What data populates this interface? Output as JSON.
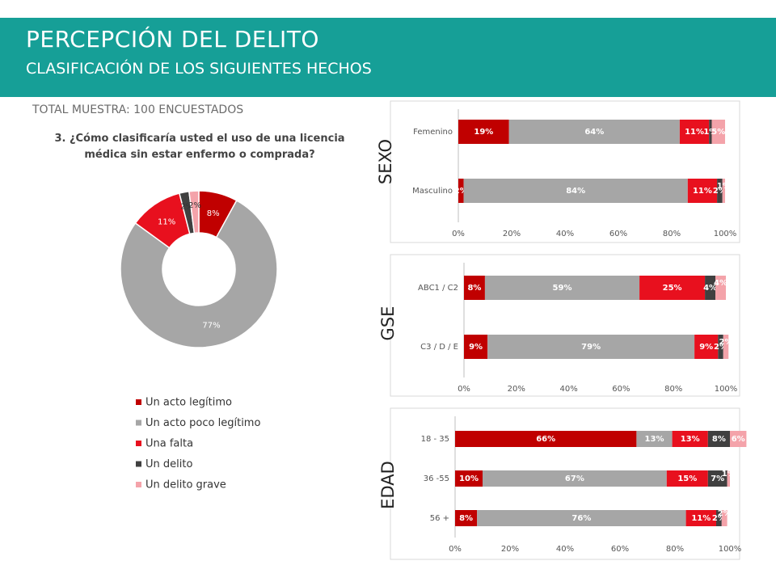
{
  "header": {
    "title": "PERCEPCIÓN DEL DELITO",
    "subtitle": "CLASIFICACIÓN DE LOS SIGUIENTES HECHOS",
    "sample": "TOTAL MUESTRA: 100 ENCUESTADOS"
  },
  "chart_data": [
    {
      "type": "donut",
      "title": "3. ¿Cómo clasificaría usted el uso de una licencia médica sin estar enfermo o comprada?",
      "categories": [
        "Un acto legítimo",
        "Un acto poco legítimo",
        "Una falta",
        "Un delito",
        "Un delito grave"
      ],
      "values": [
        8,
        77,
        11,
        2,
        2
      ],
      "value_labels": [
        "8%",
        "77%",
        "11%",
        "2%",
        "2%"
      ],
      "colors": [
        "#c00000",
        "#a6a6a6",
        "#e8101e",
        "#404040",
        "#f4a3aa"
      ],
      "legend": "bottom"
    },
    {
      "type": "stacked_barh",
      "title": "SEXO",
      "categories": [
        "Femenino",
        "Masculino"
      ],
      "series": [
        {
          "color": "#c00000",
          "values": [
            19,
            2
          ],
          "value_labels": [
            "19%",
            "2%"
          ]
        },
        {
          "color": "#a6a6a6",
          "values": [
            64,
            84
          ],
          "value_labels": [
            "64%",
            "84%"
          ]
        },
        {
          "color": "#e8101e",
          "values": [
            11,
            11
          ],
          "value_labels": [
            "11%",
            "11%"
          ]
        },
        {
          "color": "#404040",
          "values": [
            1,
            2
          ],
          "value_labels": [
            "1%",
            "2%"
          ]
        },
        {
          "color": "#f4a3aa",
          "values": [
            5,
            1
          ],
          "value_labels": [
            "5%",
            "1%"
          ]
        }
      ],
      "xlim": [
        0,
        100
      ],
      "xticks": [
        {
          "value": 0,
          "label": "0%"
        },
        {
          "value": 20,
          "label": "20%"
        },
        {
          "value": 40,
          "label": "40%"
        },
        {
          "value": 60,
          "label": "60%"
        },
        {
          "value": 80,
          "label": "80%"
        },
        {
          "value": 100,
          "label": "100%"
        }
      ]
    },
    {
      "type": "stacked_barh",
      "title": "GSE",
      "categories": [
        "ABC1 / C2",
        "C3 / D / E"
      ],
      "series": [
        {
          "color": "#c00000",
          "values": [
            8,
            9
          ],
          "value_labels": [
            "8%",
            "9%"
          ]
        },
        {
          "color": "#a6a6a6",
          "values": [
            59,
            79
          ],
          "value_labels": [
            "59%",
            "79%"
          ]
        },
        {
          "color": "#e8101e",
          "values": [
            25,
            9
          ],
          "value_labels": [
            "25%",
            "9%"
          ]
        },
        {
          "color": "#404040",
          "values": [
            4,
            2
          ],
          "value_labels": [
            "4%",
            "2%"
          ]
        },
        {
          "color": "#f4a3aa",
          "values": [
            4,
            2
          ],
          "value_labels": [
            "4%",
            "2%"
          ]
        }
      ],
      "xlim": [
        0,
        100
      ],
      "xticks": [
        {
          "value": 0,
          "label": "0%"
        },
        {
          "value": 20,
          "label": "20%"
        },
        {
          "value": 40,
          "label": "40%"
        },
        {
          "value": 60,
          "label": "60%"
        },
        {
          "value": 80,
          "label": "80%"
        },
        {
          "value": 100,
          "label": "100%"
        }
      ]
    },
    {
      "type": "stacked_barh",
      "title": "EDAD",
      "categories": [
        "18 - 35",
        "36 -55",
        "56 +"
      ],
      "series": [
        {
          "color": "#c00000",
          "values": [
            66,
            10,
            8
          ],
          "value_labels": [
            "66%",
            "10%",
            "8%"
          ]
        },
        {
          "color": "#a6a6a6",
          "values": [
            13,
            67,
            76
          ],
          "value_labels": [
            "13%",
            "67%",
            "76%"
          ]
        },
        {
          "color": "#e8101e",
          "values": [
            13,
            15,
            11
          ],
          "value_labels": [
            "13%",
            "15%",
            "11%"
          ]
        },
        {
          "color": "#404040",
          "values": [
            8,
            7,
            2
          ],
          "value_labels": [
            "8%",
            "7%",
            "2%"
          ]
        },
        {
          "color": "#f4a3aa",
          "values": [
            6,
            1,
            2
          ],
          "value_labels": [
            "6%",
            "1%",
            "2%"
          ]
        }
      ],
      "xlim": [
        0,
        100
      ],
      "xticks": [
        {
          "value": 0,
          "label": "0%"
        },
        {
          "value": 20,
          "label": "20%"
        },
        {
          "value": 40,
          "label": "40%"
        },
        {
          "value": 60,
          "label": "60%"
        },
        {
          "value": 80,
          "label": "80%"
        },
        {
          "value": 100,
          "label": "100%"
        }
      ]
    }
  ]
}
